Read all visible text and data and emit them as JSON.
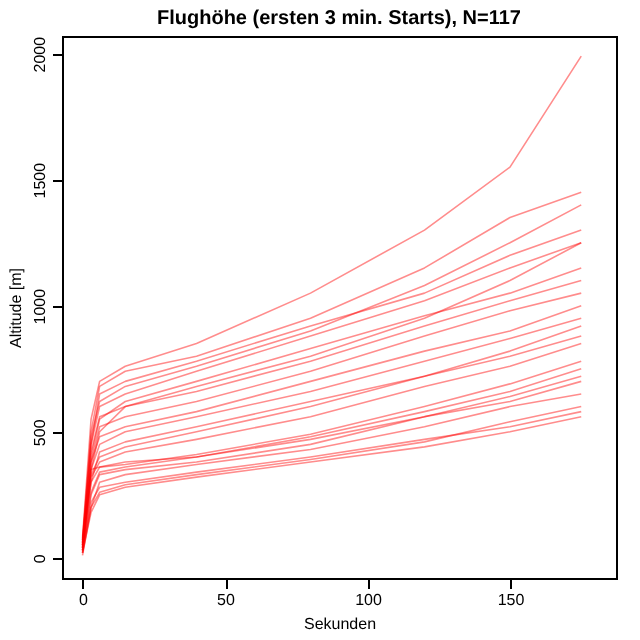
{
  "chart_data": {
    "type": "line",
    "title": "Flughöhe (ersten 3 min. Starts), N=117",
    "xlabel": "Sekunden",
    "ylabel": "Altitude [m]",
    "xlim": [
      -7.2,
      187.2
    ],
    "xticks": [
      0,
      50,
      100,
      150
    ],
    "ylim": [
      -80,
      2070
    ],
    "yticks": [
      0,
      500,
      1000,
      1500,
      2000
    ],
    "grid": false,
    "legend": false,
    "x": [
      0,
      3,
      6,
      15,
      40,
      80,
      120,
      150,
      175
    ],
    "series": [
      {
        "color": "#ff0000",
        "values": [
          20,
          250,
          330,
          350,
          380,
          450,
          560,
          620,
          700
        ]
      },
      {
        "color": "#ff0000",
        "values": [
          10,
          200,
          300,
          330,
          370,
          430,
          520,
          600,
          650
        ]
      },
      {
        "color": "#ff0000",
        "values": [
          30,
          300,
          360,
          380,
          400,
          480,
          580,
          660,
          750
        ]
      },
      {
        "color": "#ff0000",
        "values": [
          50,
          400,
          550,
          620,
          700,
          830,
          960,
          1050,
          1150
        ]
      },
      {
        "color": "#ff0000",
        "values": [
          40,
          350,
          500,
          600,
          680,
          800,
          950,
          1100,
          1250
        ]
      },
      {
        "color": "#ff0000",
        "values": [
          60,
          450,
          650,
          700,
          780,
          920,
          1050,
          1200,
          1300
        ]
      },
      {
        "color": "#ff0000",
        "values": [
          20,
          180,
          250,
          280,
          320,
          380,
          440,
          500,
          560
        ]
      },
      {
        "color": "#ff0000",
        "values": [
          30,
          220,
          280,
          300,
          340,
          400,
          470,
          520,
          580
        ]
      },
      {
        "color": "#ff0000",
        "values": [
          40,
          300,
          420,
          460,
          520,
          620,
          720,
          800,
          880
        ]
      },
      {
        "color": "#ff0000",
        "values": [
          50,
          380,
          480,
          520,
          580,
          700,
          820,
          900,
          1000
        ]
      },
      {
        "color": "#ff0000",
        "values": [
          60,
          450,
          600,
          650,
          740,
          880,
          1020,
          1150,
          1250
        ]
      },
      {
        "color": "#ff0000",
        "values": [
          70,
          500,
          680,
          740,
          800,
          950,
          1150,
          1350,
          1450
        ]
      },
      {
        "color": "#ff0000",
        "values": [
          40,
          320,
          380,
          420,
          470,
          560,
          680,
          760,
          850
        ]
      },
      {
        "color": "#ff0000",
        "values": [
          80,
          550,
          700,
          760,
          850,
          1050,
          1300,
          1550,
          1990
        ]
      },
      {
        "color": "#ff0000",
        "values": [
          30,
          260,
          340,
          360,
          400,
          470,
          560,
          640,
          720
        ]
      },
      {
        "color": "#ff0000",
        "values": [
          50,
          350,
          450,
          500,
          560,
          660,
          780,
          870,
          950
        ]
      },
      {
        "color": "#ff0000",
        "values": [
          20,
          200,
          260,
          290,
          330,
          390,
          460,
          540,
          600
        ]
      },
      {
        "color": "#ff0000",
        "values": [
          60,
          420,
          560,
          600,
          660,
          780,
          920,
          1020,
          1100
        ]
      },
      {
        "color": "#ff0000",
        "values": [
          40,
          330,
          400,
          440,
          500,
          600,
          720,
          820,
          920
        ]
      },
      {
        "color": "#ff0000",
        "values": [
          70,
          480,
          620,
          680,
          760,
          900,
          1080,
          1250,
          1400
        ]
      },
      {
        "color": "#ff0000",
        "values": [
          30,
          350,
          360,
          370,
          410,
          490,
          600,
          690,
          780
        ]
      },
      {
        "color": "#ff0000",
        "values": [
          50,
          380,
          520,
          560,
          620,
          740,
          880,
          980,
          1050
        ]
      }
    ]
  }
}
